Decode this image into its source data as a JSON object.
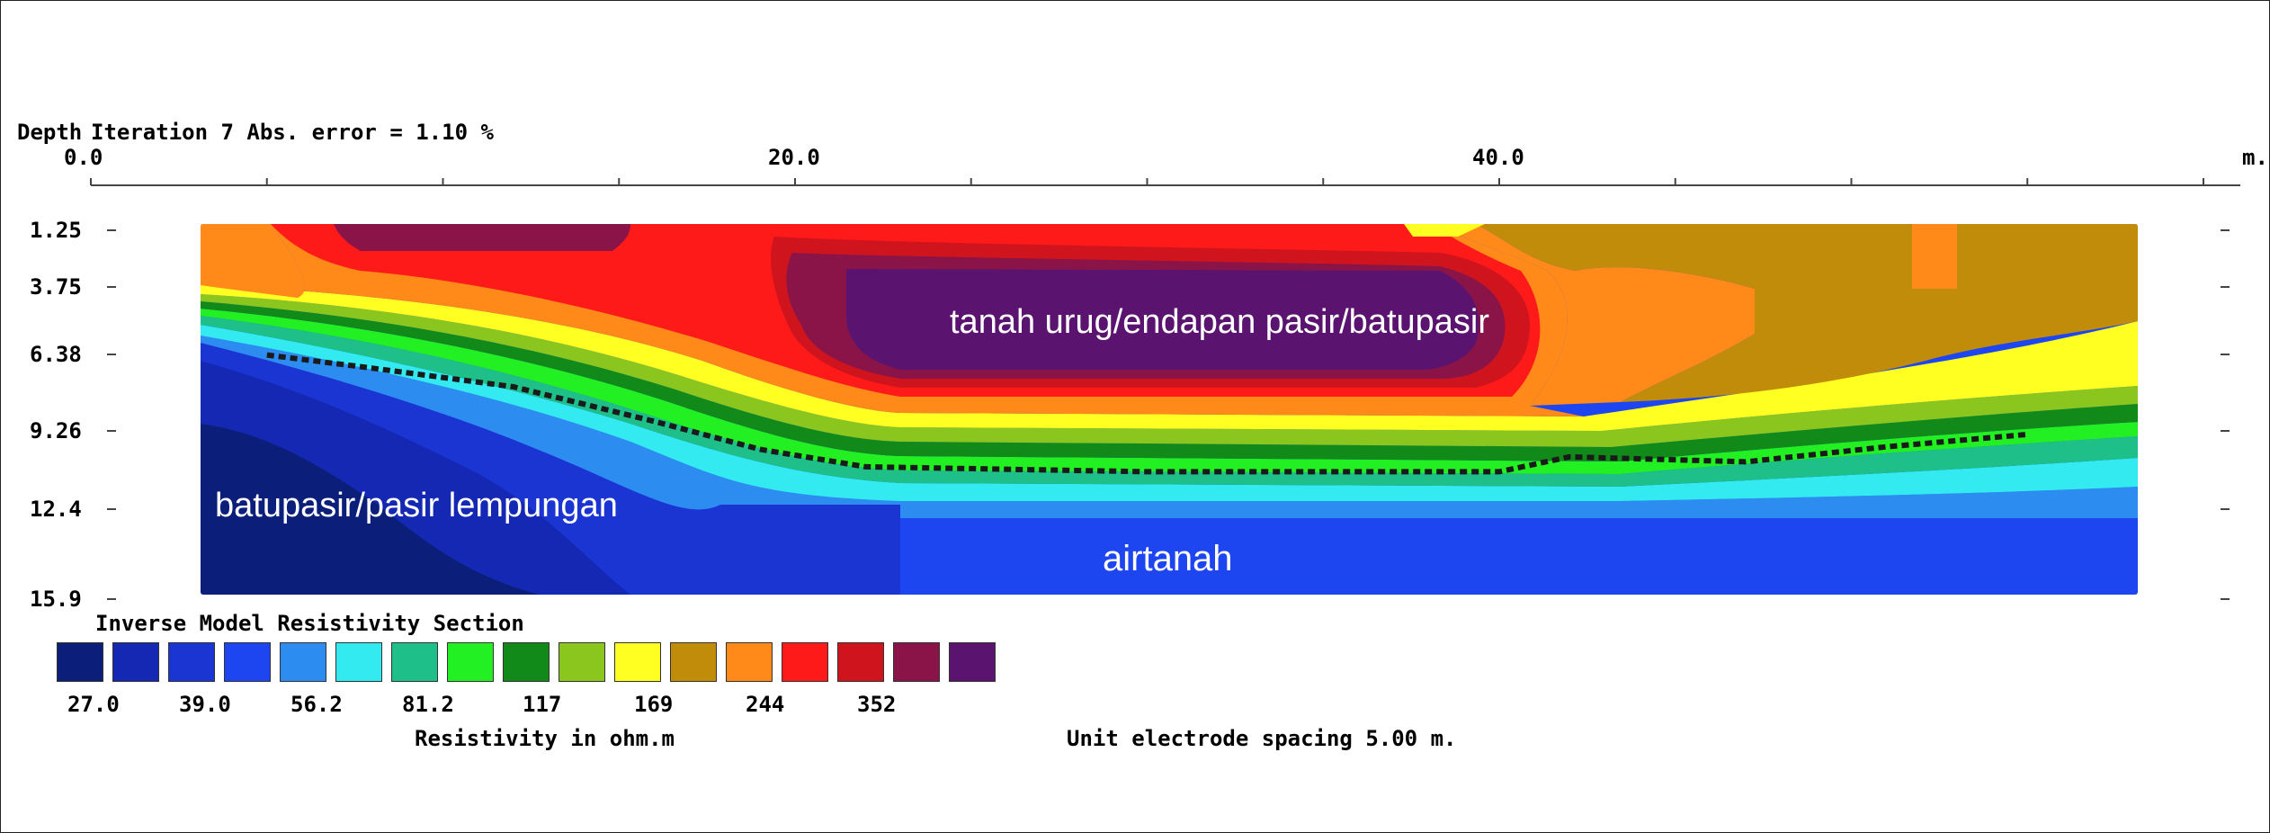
{
  "chart_data": {
    "type": "heatmap",
    "title": "Inverse Model Resistivity Section",
    "header": {
      "depth_label": "Depth",
      "iteration_text": "Iteration 7 Abs. error = 1.10 %"
    },
    "x_axis": {
      "unit": "m.",
      "tick_labels": [
        "0.0",
        "20.0",
        "40.0"
      ],
      "tick_values": [
        0,
        20,
        40
      ],
      "minor_tick_step": 5,
      "range": [
        0,
        60
      ]
    },
    "y_axis": {
      "label": "Depth",
      "tick_labels": [
        "1.25",
        "3.75",
        "6.38",
        "9.26",
        "12.4",
        "15.9"
      ],
      "tick_values": [
        1.25,
        3.75,
        6.38,
        9.26,
        12.4,
        15.9
      ]
    },
    "data_extent": {
      "x": [
        5,
        55
      ],
      "depth": [
        1.25,
        15.9
      ]
    },
    "legend": {
      "title": "Inverse Model Resistivity Section",
      "colors": [
        "#0b1f7a",
        "#1428b4",
        "#1a35d2",
        "#1e46f0",
        "#2d8cf0",
        "#33eaf0",
        "#1fbf8a",
        "#22f022",
        "#128a1a",
        "#8ac61e",
        "#ffff22",
        "#c08c0a",
        "#ff8a1a",
        "#ff1a1a",
        "#d0141e",
        "#8a1448",
        "#5a1470"
      ],
      "value_labels": [
        "27.0",
        "39.0",
        "56.2",
        "81.2",
        "117",
        "169",
        "244",
        "352"
      ],
      "unit_label": "Resistivity in ohm.m"
    },
    "spacing_note": "Unit electrode spacing 5.00 m.",
    "annotations": {
      "top": "tanah urug/endapan pasir/batupasir",
      "left": "batupasir/pasir lempungan",
      "bottom": "airtanah"
    },
    "boundary_line_depth": [
      {
        "x": 5.0,
        "depth": 6.4
      },
      {
        "x": 8,
        "depth": 6.9
      },
      {
        "x": 12,
        "depth": 7.6
      },
      {
        "x": 16,
        "depth": 8.9
      },
      {
        "x": 19,
        "depth": 10.0
      },
      {
        "x": 22,
        "depth": 10.7
      },
      {
        "x": 30,
        "depth": 10.9
      },
      {
        "x": 40,
        "depth": 10.9
      },
      {
        "x": 42,
        "depth": 10.3
      },
      {
        "x": 47,
        "depth": 10.5
      },
      {
        "x": 51,
        "depth": 9.9
      },
      {
        "x": 55,
        "depth": 9.4
      }
    ]
  }
}
